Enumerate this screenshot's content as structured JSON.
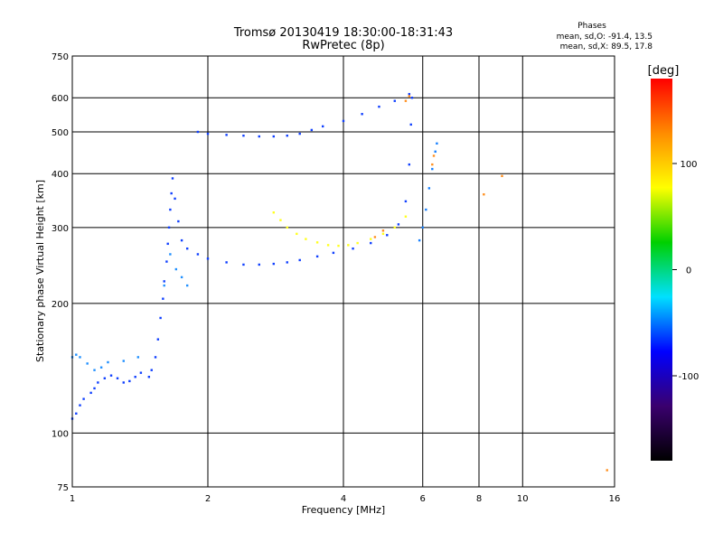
{
  "chart_data": {
    "type": "scatter",
    "title": "Tromsø 20130419 18:30:00-18:31:43",
    "subtitle": "RwPretec (8p)",
    "xlabel": "Frequency [MHz]",
    "ylabel": "Stationary phase Virtual Height [km]",
    "x_scale": "log",
    "y_scale": "log",
    "xlim": [
      1,
      16
    ],
    "ylim": [
      75,
      750
    ],
    "x_ticks": [
      "1",
      "2",
      "4",
      "6",
      "8",
      "10",
      "16"
    ],
    "y_ticks": [
      "75",
      "100",
      "200",
      "300",
      "400",
      "500",
      "600",
      "750"
    ],
    "stats_header": "Phases",
    "stats_lines": [
      "mean, sd,O: -91.4, 13.5",
      "mean, sd,X:  89.5, 17.8"
    ],
    "colorbar": {
      "label": "[deg]",
      "range": [
        -180,
        180
      ],
      "ticks": [
        "100",
        "0",
        "-100"
      ],
      "colors": [
        "#000000",
        "#3a006e",
        "#0000ff",
        "#00e0ff",
        "#00d000",
        "#ffff00",
        "#ff8c00",
        "#ff0000"
      ]
    },
    "series": [
      {
        "color": "#1040ff",
        "points": [
          [
            1.0,
            108
          ],
          [
            1.02,
            111
          ],
          [
            1.04,
            116
          ],
          [
            1.06,
            120
          ],
          [
            1.1,
            124
          ],
          [
            1.12,
            127
          ],
          [
            1.14,
            131
          ],
          [
            1.18,
            134
          ],
          [
            1.22,
            136
          ],
          [
            1.26,
            134
          ],
          [
            1.3,
            131
          ],
          [
            1.34,
            132
          ],
          [
            1.38,
            135
          ],
          [
            1.42,
            138
          ],
          [
            1.48,
            135
          ],
          [
            1.5,
            140
          ],
          [
            1.53,
            150
          ],
          [
            1.55,
            165
          ],
          [
            1.57,
            185
          ],
          [
            1.59,
            205
          ],
          [
            1.6,
            225
          ],
          [
            1.62,
            250
          ],
          [
            1.63,
            275
          ],
          [
            1.64,
            300
          ],
          [
            1.65,
            330
          ],
          [
            1.66,
            360
          ],
          [
            1.67,
            390
          ],
          [
            1.69,
            350
          ],
          [
            1.72,
            310
          ],
          [
            1.75,
            280
          ],
          [
            1.8,
            268
          ],
          [
            1.9,
            260
          ],
          [
            2.0,
            254
          ],
          [
            2.2,
            249
          ],
          [
            2.4,
            246
          ],
          [
            2.6,
            246
          ],
          [
            2.8,
            247
          ],
          [
            3.0,
            249
          ],
          [
            3.2,
            252
          ],
          [
            3.5,
            257
          ],
          [
            3.8,
            262
          ],
          [
            4.2,
            268
          ],
          [
            4.6,
            276
          ],
          [
            5.0,
            288
          ],
          [
            5.3,
            305
          ],
          [
            5.5,
            345
          ],
          [
            5.6,
            420
          ],
          [
            5.65,
            520
          ],
          [
            5.68,
            600
          ],
          [
            1.9,
            500
          ],
          [
            2.0,
            495
          ],
          [
            2.2,
            492
          ],
          [
            2.4,
            490
          ],
          [
            2.6,
            488
          ],
          [
            2.8,
            488
          ],
          [
            3.0,
            490
          ],
          [
            3.2,
            495
          ],
          [
            3.4,
            505
          ],
          [
            3.6,
            515
          ],
          [
            4.0,
            530
          ],
          [
            4.4,
            550
          ],
          [
            4.8,
            572
          ],
          [
            5.2,
            590
          ],
          [
            5.6,
            612
          ]
        ]
      },
      {
        "color": "#ffff20",
        "points": [
          [
            2.8,
            325
          ],
          [
            2.9,
            312
          ],
          [
            3.0,
            300
          ],
          [
            3.15,
            290
          ],
          [
            3.3,
            282
          ],
          [
            3.5,
            277
          ],
          [
            3.7,
            273
          ],
          [
            3.9,
            272
          ],
          [
            4.1,
            273
          ],
          [
            4.3,
            276
          ],
          [
            4.6,
            282
          ],
          [
            4.9,
            290
          ],
          [
            5.2,
            300
          ],
          [
            5.5,
            318
          ]
        ]
      },
      {
        "color": "#2090ff",
        "points": [
          [
            1.0,
            150
          ],
          [
            1.02,
            152
          ],
          [
            1.04,
            150
          ],
          [
            1.08,
            145
          ],
          [
            1.12,
            140
          ],
          [
            1.16,
            142
          ],
          [
            1.2,
            146
          ],
          [
            1.3,
            147
          ],
          [
            1.4,
            150
          ],
          [
            1.6,
            220
          ],
          [
            1.65,
            260
          ],
          [
            1.7,
            240
          ],
          [
            1.75,
            230
          ],
          [
            1.8,
            220
          ]
        ]
      },
      {
        "color": "#1880ff",
        "points": [
          [
            5.9,
            280
          ],
          [
            6.0,
            300
          ],
          [
            6.1,
            330
          ],
          [
            6.2,
            370
          ],
          [
            6.3,
            410
          ],
          [
            6.4,
            450
          ],
          [
            6.45,
            470
          ]
        ]
      },
      {
        "color": "#ff9020",
        "points": [
          [
            5.5,
            590
          ],
          [
            5.6,
            605
          ],
          [
            4.7,
            285
          ],
          [
            4.9,
            295
          ],
          [
            6.3,
            420
          ],
          [
            6.35,
            440
          ],
          [
            8.2,
            358
          ],
          [
            9.0,
            395
          ],
          [
            15.4,
            82
          ]
        ]
      }
    ]
  }
}
